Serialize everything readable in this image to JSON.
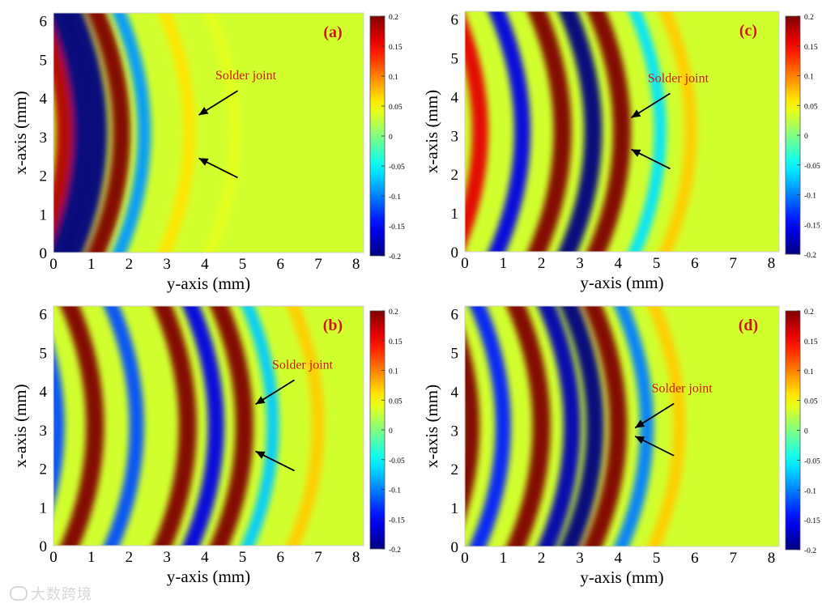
{
  "chart_data": [
    {
      "type": "heatmap",
      "panel_label": "(a)",
      "xlabel": "y-axis  (mm)",
      "ylabel": "x-axis  (mm)",
      "x_ticks": [
        "0",
        "1",
        "2",
        "3",
        "4",
        "5",
        "6",
        "7",
        "8"
      ],
      "y_ticks": [
        "0",
        "1",
        "2",
        "3",
        "4",
        "5",
        "6"
      ],
      "xlim": [
        0,
        8.2
      ],
      "ylim": [
        0,
        6.2
      ],
      "annotation": "Solder joint",
      "arrow_targets": [
        {
          "x": 3.8,
          "y": 3.6
        },
        {
          "x": 3.8,
          "y": 2.4
        }
      ],
      "wavefronts": [
        {
          "apex_y": 0.3,
          "sign": 1,
          "amp": 0.9
        },
        {
          "apex_y": 0.75,
          "sign": -1,
          "amp": 1.0
        },
        {
          "apex_y": 1.2,
          "sign": -1,
          "amp": 1.0
        },
        {
          "apex_y": 1.8,
          "sign": 1,
          "amp": 1.0
        },
        {
          "apex_y": 2.4,
          "sign": -1,
          "amp": 0.45
        },
        {
          "apex_y": 3.6,
          "sign": 1,
          "amp": 0.3
        },
        {
          "apex_y": 4.8,
          "sign": 1,
          "amp": 0.2
        }
      ],
      "colorbar": {
        "min": -0.2,
        "max": 0.2,
        "ticks": [
          "0.2",
          "0.15",
          "0.1",
          "0.05",
          "0",
          "-0.05",
          "-0.1",
          "-0.15",
          "-0.2"
        ]
      }
    },
    {
      "type": "heatmap",
      "panel_label": "(b)",
      "xlabel": "y-axis  (mm)",
      "ylabel": "x-axis  (mm)",
      "x_ticks": [
        "0",
        "1",
        "2",
        "3",
        "4",
        "5",
        "6",
        "7",
        "8"
      ],
      "y_ticks": [
        "0",
        "1",
        "2",
        "3",
        "4",
        "5",
        "6"
      ],
      "xlim": [
        0,
        8.2
      ],
      "ylim": [
        0,
        6.2
      ],
      "annotation": "Solder joint",
      "arrow_targets": [
        {
          "x": 5.3,
          "y": 3.7
        },
        {
          "x": 5.3,
          "y": 2.4
        }
      ],
      "wavefronts": [
        {
          "apex_y": 0.1,
          "sign": -1,
          "amp": 0.6
        },
        {
          "apex_y": 1.1,
          "sign": 1,
          "amp": 1.0
        },
        {
          "apex_y": 2.2,
          "sign": -1,
          "amp": 0.6
        },
        {
          "apex_y": 3.55,
          "sign": 1,
          "amp": 1.0
        },
        {
          "apex_y": 4.3,
          "sign": -1,
          "amp": 0.8
        },
        {
          "apex_y": 5.05,
          "sign": 1,
          "amp": 1.0
        },
        {
          "apex_y": 5.8,
          "sign": -1,
          "amp": 0.35
        },
        {
          "apex_y": 7.0,
          "sign": 1,
          "amp": 0.35
        }
      ],
      "colorbar": {
        "min": -0.2,
        "max": 0.2,
        "ticks": [
          "0.2",
          "0.15",
          "0.1",
          "0.05",
          "0",
          "-0.05",
          "-0.1",
          "-0.15",
          "-0.2"
        ]
      }
    },
    {
      "type": "heatmap",
      "panel_label": "(c)",
      "xlabel": "y-axis  (mm)",
      "ylabel": "x-axis  (mm)",
      "x_ticks": [
        "0",
        "1",
        "2",
        "3",
        "4",
        "5",
        "6",
        "7",
        "8"
      ],
      "y_ticks": [
        "0",
        "1",
        "2",
        "3",
        "4",
        "5",
        "6"
      ],
      "xlim": [
        0,
        8.2
      ],
      "ylim": [
        0,
        6.2
      ],
      "annotation": "Solder joint",
      "arrow_targets": [
        {
          "x": 4.3,
          "y": 3.5
        },
        {
          "x": 4.3,
          "y": 2.6
        }
      ],
      "wavefronts": [
        {
          "apex_y": 0.4,
          "sign": 1,
          "amp": 0.8
        },
        {
          "apex_y": 1.5,
          "sign": -1,
          "amp": 0.8
        },
        {
          "apex_y": 2.55,
          "sign": 1,
          "amp": 1.0
        },
        {
          "apex_y": 3.35,
          "sign": -1,
          "amp": 1.0
        },
        {
          "apex_y": 4.1,
          "sign": 1,
          "amp": 1.0
        },
        {
          "apex_y": 5.1,
          "sign": -1,
          "amp": 0.3
        },
        {
          "apex_y": 5.9,
          "sign": 1,
          "amp": 0.35
        }
      ],
      "colorbar": {
        "min": -0.2,
        "max": 0.2,
        "ticks": [
          "0.2",
          "0.15",
          "0.1",
          "0.05",
          "0",
          "-0.05",
          "-0.1",
          "-0.15",
          "-0.2"
        ]
      }
    },
    {
      "type": "heatmap",
      "panel_label": "(d)",
      "xlabel": "y-axis  (mm)",
      "ylabel": "x-axis  (mm)",
      "x_ticks": [
        "0",
        "1",
        "2",
        "3",
        "4",
        "5",
        "6",
        "7",
        "8"
      ],
      "y_ticks": [
        "0",
        "1",
        "2",
        "3",
        "4",
        "5",
        "6"
      ],
      "xlim": [
        0,
        8.2
      ],
      "ylim": [
        0,
        6.2
      ],
      "annotation": "Solder joint",
      "arrow_targets": [
        {
          "x": 4.4,
          "y": 3.1
        },
        {
          "x": 4.4,
          "y": 2.8
        }
      ],
      "wavefronts": [
        {
          "apex_y": 0.15,
          "sign": 1,
          "amp": 1.0
        },
        {
          "apex_y": 1.0,
          "sign": -1,
          "amp": 0.7
        },
        {
          "apex_y": 2.0,
          "sign": 1,
          "amp": 1.0
        },
        {
          "apex_y": 2.8,
          "sign": -1,
          "amp": 0.9
        },
        {
          "apex_y": 3.4,
          "sign": -1,
          "amp": 1.0
        },
        {
          "apex_y": 4.0,
          "sign": 1,
          "amp": 1.0
        },
        {
          "apex_y": 4.75,
          "sign": -1,
          "amp": 0.5
        },
        {
          "apex_y": 5.6,
          "sign": 1,
          "amp": 0.35
        }
      ],
      "colorbar": {
        "min": -0.2,
        "max": 0.2,
        "ticks": [
          "0.2",
          "0.15",
          "0.1",
          "0.05",
          "0",
          "-0.05",
          "-0.1",
          "-0.15",
          "-0.2"
        ]
      }
    }
  ],
  "watermark": "大数跨境",
  "colors": {
    "annotation": "#cc1a1a",
    "axis": "#000000"
  }
}
